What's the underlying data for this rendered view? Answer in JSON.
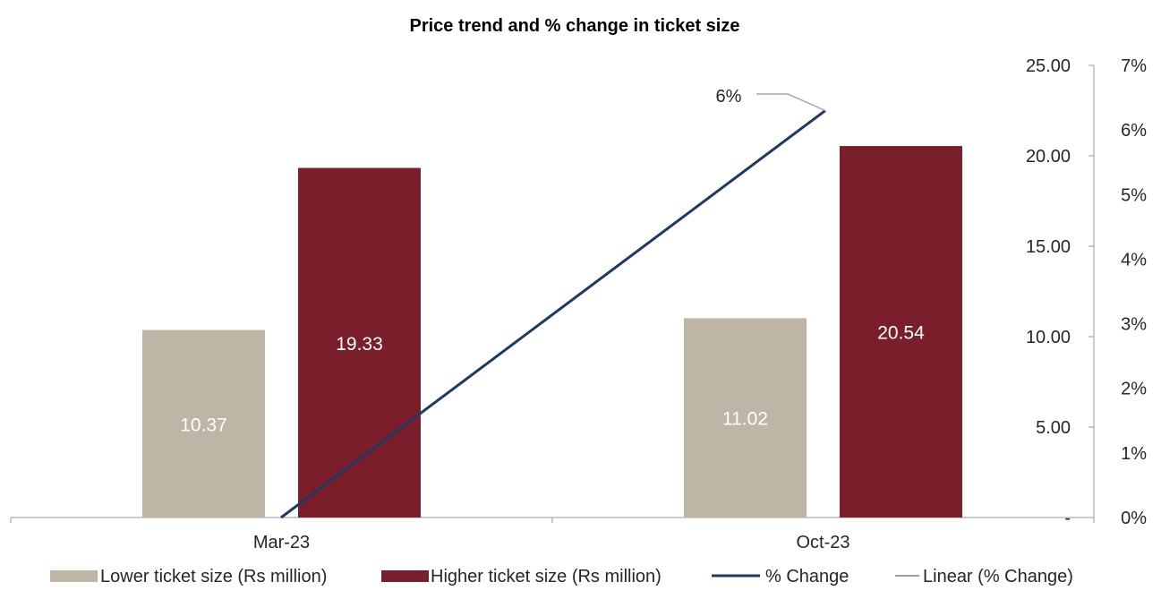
{
  "chart_data": {
    "type": "bar",
    "title": "Price trend and % change in ticket size",
    "categories": [
      "Mar-23",
      "Oct-23"
    ],
    "series": [
      {
        "name": "Lower ticket size (Rs million)",
        "kind": "bar",
        "axis": "left",
        "color": "#bdb5a6",
        "values": [
          10.37,
          11.02
        ],
        "labels": [
          "10.37",
          "11.02"
        ]
      },
      {
        "name": "Higher ticket size (Rs million)",
        "kind": "bar",
        "axis": "left",
        "color": "#7b1e2b",
        "values": [
          19.33,
          20.54
        ],
        "labels": [
          "19.33",
          "20.54"
        ]
      },
      {
        "name": "% Change",
        "kind": "line",
        "axis": "right",
        "color": "#1f3864",
        "values": [
          0,
          6.3
        ]
      },
      {
        "name": "Linear (% Change)",
        "kind": "trendline",
        "axis": "right",
        "color": "#a6a6a6",
        "values": [
          0,
          6.3
        ]
      }
    ],
    "annotation": {
      "text": "6%",
      "category": "Oct-23",
      "value": 6.3
    },
    "y_left": {
      "min": 0,
      "max": 25,
      "ticks": [
        "-",
        "5.00",
        "10.00",
        "15.00",
        "20.00",
        "25.00"
      ],
      "tick_values": [
        0,
        5,
        10,
        15,
        20,
        25
      ]
    },
    "y_right": {
      "min": 0,
      "max": 7,
      "ticks": [
        "0%",
        "1%",
        "2%",
        "3%",
        "4%",
        "5%",
        "6%",
        "7%"
      ],
      "tick_values": [
        0,
        1,
        2,
        3,
        4,
        5,
        6,
        7
      ]
    },
    "grid": false,
    "legend_position": "bottom"
  }
}
